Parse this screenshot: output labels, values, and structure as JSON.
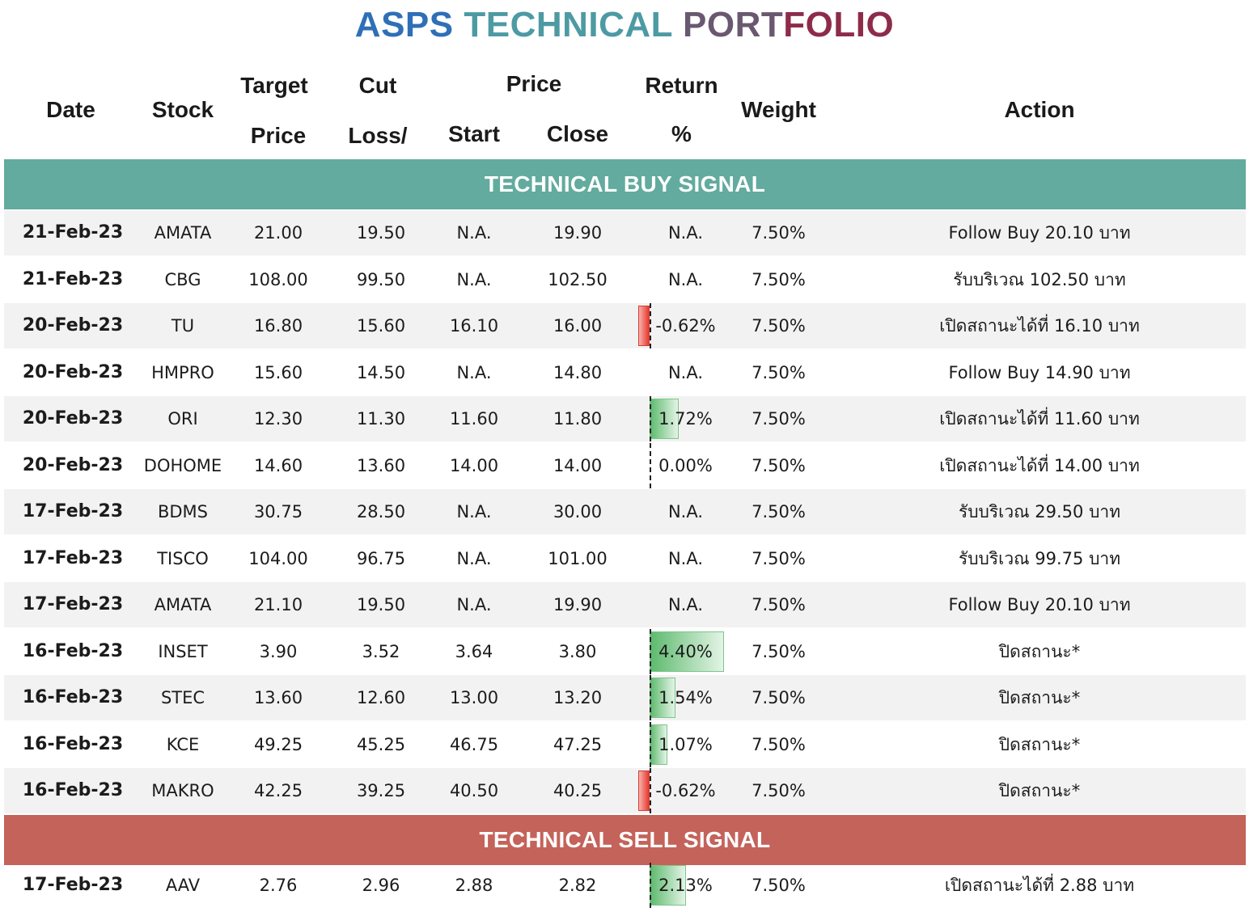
{
  "title": {
    "w1": "ASPS",
    "w2": "TECHNICAL",
    "w3": "PORT",
    "w4": "FOLIO"
  },
  "headers": {
    "date": "Date",
    "stock": "Stock",
    "target_1": "Target",
    "target_2": "Price",
    "cut_1": "Cut",
    "cut_2": "Loss/",
    "price": "Price",
    "start": "Start",
    "close": "Close",
    "return_1": "Return",
    "return_2": "%",
    "weight": "Weight",
    "action": "Action"
  },
  "buy_label": "TECHNICAL BUY SIGNAL",
  "sell_label": "TECHNICAL SELL SIGNAL",
  "colors": {
    "buy_band": "#62ab9e",
    "sell_band": "#c4635a",
    "positive_bar": "#5dba6e",
    "negative_bar": "#e8392f"
  },
  "buy_rows": [
    {
      "date": "21-Feb-23",
      "stock": "AMATA",
      "target": "21.00",
      "cut": "19.50",
      "start": "N.A.",
      "close": "19.90",
      "ret": "N.A.",
      "weight": "7.50%",
      "action": "Follow Buy 20.10 บาท",
      "ret_value": null
    },
    {
      "date": "21-Feb-23",
      "stock": "CBG",
      "target": "108.00",
      "cut": "99.50",
      "start": "N.A.",
      "close": "102.50",
      "ret": "N.A.",
      "weight": "7.50%",
      "action": "รับบริเวณ 102.50 บาท",
      "ret_value": null
    },
    {
      "date": "20-Feb-23",
      "stock": "TU",
      "target": "16.80",
      "cut": "15.60",
      "start": "16.10",
      "close": "16.00",
      "ret": "-0.62%",
      "weight": "7.50%",
      "action": "เปิดสถานะได้ที่ 16.10 บาท",
      "ret_value": -0.62
    },
    {
      "date": "20-Feb-23",
      "stock": "HMPRO",
      "target": "15.60",
      "cut": "14.50",
      "start": "N.A.",
      "close": "14.80",
      "ret": "N.A.",
      "weight": "7.50%",
      "action": "Follow Buy 14.90 บาท",
      "ret_value": null
    },
    {
      "date": "20-Feb-23",
      "stock": "ORI",
      "target": "12.30",
      "cut": "11.30",
      "start": "11.60",
      "close": "11.80",
      "ret": "1.72%",
      "weight": "7.50%",
      "action": "เปิดสถานะได้ที่ 11.60 บาท",
      "ret_value": 1.72
    },
    {
      "date": "20-Feb-23",
      "stock": "DOHOME",
      "target": "14.60",
      "cut": "13.60",
      "start": "14.00",
      "close": "14.00",
      "ret": "0.00%",
      "weight": "7.50%",
      "action": "เปิดสถานะได้ที่ 14.00 บาท",
      "ret_value": 0.0
    },
    {
      "date": "17-Feb-23",
      "stock": "BDMS",
      "target": "30.75",
      "cut": "28.50",
      "start": "N.A.",
      "close": "30.00",
      "ret": "N.A.",
      "weight": "7.50%",
      "action": "รับบริเวณ 29.50 บาท",
      "ret_value": null
    },
    {
      "date": "17-Feb-23",
      "stock": "TISCO",
      "target": "104.00",
      "cut": "96.75",
      "start": "N.A.",
      "close": "101.00",
      "ret": "N.A.",
      "weight": "7.50%",
      "action": "รับบริเวณ 99.75 บาท",
      "ret_value": null
    },
    {
      "date": "17-Feb-23",
      "stock": "AMATA",
      "target": "21.10",
      "cut": "19.50",
      "start": "N.A.",
      "close": "19.90",
      "ret": "N.A.",
      "weight": "7.50%",
      "action": "Follow Buy 20.10 บาท",
      "ret_value": null
    },
    {
      "date": "16-Feb-23",
      "stock": "INSET",
      "target": "3.90",
      "cut": "3.52",
      "start": "3.64",
      "close": "3.80",
      "ret": "4.40%",
      "weight": "7.50%",
      "action": "ปิดสถานะ*",
      "ret_value": 4.4
    },
    {
      "date": "16-Feb-23",
      "stock": "STEC",
      "target": "13.60",
      "cut": "12.60",
      "start": "13.00",
      "close": "13.20",
      "ret": "1.54%",
      "weight": "7.50%",
      "action": "ปิดสถานะ*",
      "ret_value": 1.54
    },
    {
      "date": "16-Feb-23",
      "stock": "KCE",
      "target": "49.25",
      "cut": "45.25",
      "start": "46.75",
      "close": "47.25",
      "ret": "1.07%",
      "weight": "7.50%",
      "action": "ปิดสถานะ*",
      "ret_value": 1.07
    },
    {
      "date": "16-Feb-23",
      "stock": "MAKRO",
      "target": "42.25",
      "cut": "39.25",
      "start": "40.50",
      "close": "40.25",
      "ret": "-0.62%",
      "weight": "7.50%",
      "action": "ปิดสถานะ*",
      "ret_value": -0.62
    }
  ],
  "sell_rows": [
    {
      "date": "17-Feb-23",
      "stock": "AAV",
      "target": "2.76",
      "cut": "2.96",
      "start": "2.88",
      "close": "2.82",
      "ret": "2.13%",
      "weight": "7.50%",
      "action": "เปิดสถานะได้ที่ 2.88 บาท",
      "ret_value": 2.13
    }
  ]
}
